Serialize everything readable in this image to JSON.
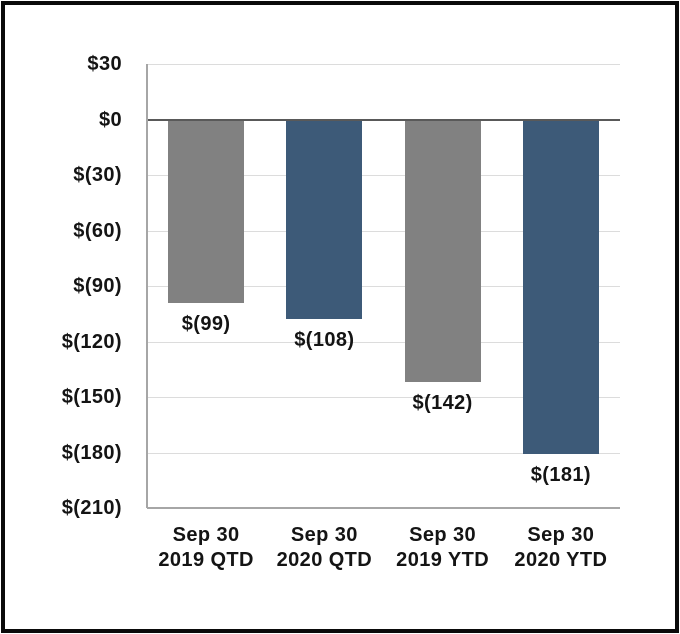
{
  "chart_data": {
    "type": "bar",
    "title": "",
    "xlabel": "",
    "ylabel": "",
    "categories": [
      {
        "line1": "Sep 30",
        "line2": "2019 QTD"
      },
      {
        "line1": "Sep 30",
        "line2": "2020 QTD"
      },
      {
        "line1": "Sep 30",
        "line2": "2019 YTD"
      },
      {
        "line1": "Sep 30",
        "line2": "2020 YTD"
      }
    ],
    "values": [
      -99,
      -108,
      -142,
      -181
    ],
    "bar_labels": [
      "$(99)",
      "$(108)",
      "$(142)",
      "$(181)"
    ],
    "bar_colors": [
      "#818181",
      "#3D5A78",
      "#818181",
      "#3D5A78"
    ],
    "y_ticks": [
      {
        "value": 30,
        "label": "$30"
      },
      {
        "value": 0,
        "label": "$0"
      },
      {
        "value": -30,
        "label": "$(30)"
      },
      {
        "value": -60,
        "label": "$(60)"
      },
      {
        "value": -90,
        "label": "$(90)"
      },
      {
        "value": -120,
        "label": "$(120)"
      },
      {
        "value": -150,
        "label": "$(150)"
      },
      {
        "value": -180,
        "label": "$(180)"
      },
      {
        "value": -210,
        "label": "$(210)"
      }
    ],
    "ylim": [
      -210,
      30
    ],
    "grid": true,
    "legend_position": "none"
  },
  "colors": {
    "bar_gray": "#818181",
    "bar_blue": "#3D5A78",
    "gridline": "#DCDCDC",
    "zero_line": "#595959",
    "axis_line": "#A6A6A6",
    "text": "#141414",
    "frame_border": "#0A0A0A",
    "background": "#FFFFFF"
  }
}
